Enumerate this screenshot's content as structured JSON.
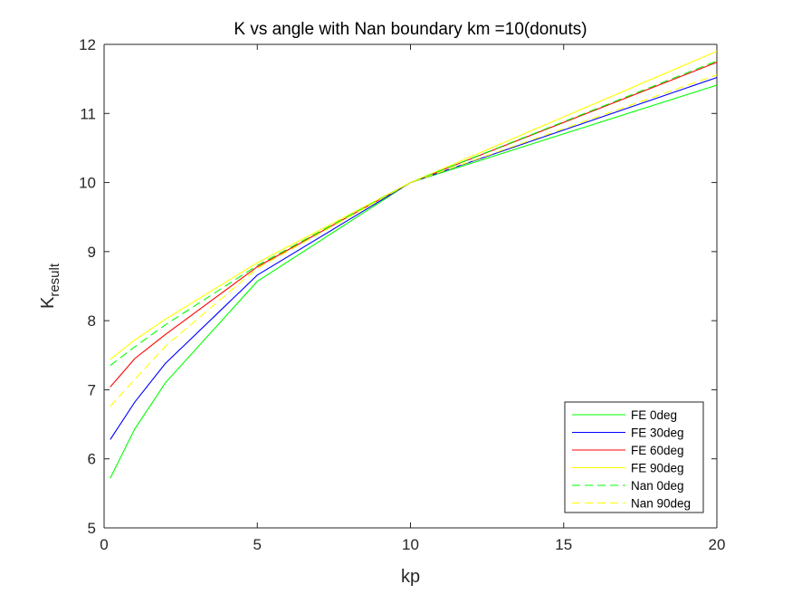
{
  "chart_data": {
    "type": "line",
    "title": "K vs angle with Nan boundary km =10(donuts)",
    "xlabel": "kp",
    "ylabel": "K",
    "ylabel_sub": "result",
    "xlim": [
      0,
      20
    ],
    "ylim": [
      5,
      12
    ],
    "xticks": [
      0,
      5,
      10,
      15,
      20
    ],
    "yticks": [
      5,
      6,
      7,
      8,
      9,
      10,
      11,
      12
    ],
    "grid": false,
    "legend_position": "bottom-right",
    "series": [
      {
        "name": "FE 0deg",
        "color": "#00ff00",
        "dash": "solid",
        "x": [
          0.2,
          1,
          2,
          5,
          10,
          20
        ],
        "y": [
          5.72,
          6.43,
          7.1,
          8.57,
          10.0,
          11.41
        ]
      },
      {
        "name": "FE 30deg",
        "color": "#0000ff",
        "dash": "solid",
        "x": [
          0.2,
          1,
          2,
          5,
          10,
          20
        ],
        "y": [
          6.28,
          6.82,
          7.38,
          8.66,
          10.0,
          11.52
        ]
      },
      {
        "name": "FE 60deg",
        "color": "#ff0000",
        "dash": "solid",
        "x": [
          0.2,
          1,
          2,
          5,
          10,
          20
        ],
        "y": [
          7.04,
          7.45,
          7.8,
          8.78,
          10.0,
          11.74
        ]
      },
      {
        "name": "FE 90deg",
        "color": "#ffff00",
        "dash": "solid",
        "x": [
          0.2,
          1,
          2,
          5,
          10,
          20
        ],
        "y": [
          7.44,
          7.72,
          8.02,
          8.84,
          10.0,
          11.9
        ]
      },
      {
        "name": "Nan 0deg",
        "color": "#00ff00",
        "dash": "dashed",
        "x": [
          0.2,
          1,
          2,
          5,
          10,
          20
        ],
        "y": [
          7.35,
          7.62,
          7.94,
          8.8,
          10.0,
          11.76
        ]
      },
      {
        "name": "Nan 90deg",
        "color": "#ffff00",
        "dash": "dashed",
        "x": [
          0.2,
          1,
          2,
          5,
          10,
          20
        ],
        "y": [
          6.76,
          7.15,
          7.63,
          8.76,
          10.0,
          11.56
        ]
      }
    ]
  }
}
